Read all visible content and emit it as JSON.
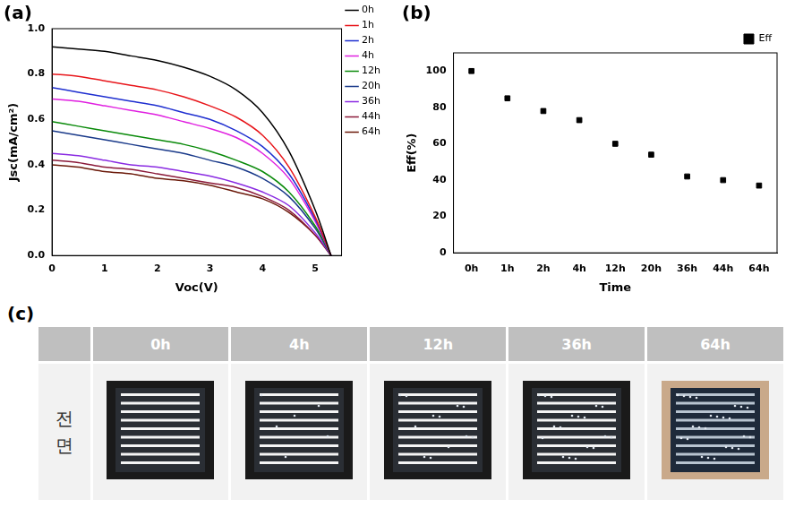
{
  "chart_data": [
    {
      "type": "line",
      "title": "(a)",
      "x_label": "Voc(V)",
      "y_label": "Jsc(mA/cm²)",
      "x": [
        0,
        0.5,
        1,
        1.5,
        2,
        2.5,
        3,
        3.5,
        4,
        4.5,
        5,
        5.3
      ],
      "series": [
        {
          "name": "0h",
          "color": "#000000",
          "values": [
            0.92,
            0.91,
            0.9,
            0.88,
            0.86,
            0.83,
            0.79,
            0.73,
            0.63,
            0.46,
            0.2,
            0
          ]
        },
        {
          "name": "1h",
          "color": "#e8161b",
          "values": [
            0.8,
            0.79,
            0.77,
            0.75,
            0.73,
            0.7,
            0.66,
            0.61,
            0.53,
            0.39,
            0.17,
            0
          ]
        },
        {
          "name": "2h",
          "color": "#1f2fd0",
          "values": [
            0.74,
            0.72,
            0.7,
            0.68,
            0.66,
            0.63,
            0.6,
            0.55,
            0.48,
            0.36,
            0.16,
            0
          ]
        },
        {
          "name": "4h",
          "color": "#e020e0",
          "values": [
            0.69,
            0.68,
            0.66,
            0.64,
            0.62,
            0.59,
            0.56,
            0.52,
            0.45,
            0.34,
            0.15,
            0
          ]
        },
        {
          "name": "12h",
          "color": "#0a8a0a",
          "values": [
            0.59,
            0.57,
            0.55,
            0.53,
            0.51,
            0.49,
            0.46,
            0.42,
            0.37,
            0.28,
            0.13,
            0
          ]
        },
        {
          "name": "20h",
          "color": "#1a3a8a",
          "values": [
            0.55,
            0.53,
            0.51,
            0.49,
            0.47,
            0.45,
            0.42,
            0.39,
            0.34,
            0.26,
            0.12,
            0
          ]
        },
        {
          "name": "36h",
          "color": "#8a2be2",
          "values": [
            0.45,
            0.44,
            0.42,
            0.4,
            0.39,
            0.37,
            0.35,
            0.32,
            0.28,
            0.22,
            0.1,
            0
          ]
        },
        {
          "name": "44h",
          "color": "#8b1a3a",
          "values": [
            0.42,
            0.41,
            0.39,
            0.38,
            0.36,
            0.34,
            0.32,
            0.3,
            0.26,
            0.2,
            0.09,
            0
          ]
        },
        {
          "name": "64h",
          "color": "#6b1a0a",
          "values": [
            0.4,
            0.39,
            0.37,
            0.36,
            0.34,
            0.33,
            0.31,
            0.28,
            0.25,
            0.19,
            0.09,
            0
          ]
        }
      ],
      "xlim": [
        0,
        5.5
      ],
      "xticks": [
        0,
        1,
        2,
        3,
        4,
        5
      ],
      "ylim": [
        0,
        1
      ],
      "yticks": [
        {
          "value": 0,
          "label": "0.0"
        },
        0.2,
        0.4,
        0.6,
        0.8,
        {
          "value": 1,
          "label": "1.0"
        }
      ],
      "line_style": "solid",
      "grid": false,
      "legend": "right"
    },
    {
      "type": "scatter",
      "title": "(b)",
      "x_label": "Time",
      "y_label": "Eff(%)",
      "categories": [
        "0h",
        "1h",
        "2h",
        "4h",
        "12h",
        "20h",
        "36h",
        "44h",
        "64h"
      ],
      "series": [
        {
          "name": "Eff",
          "color": "#000000",
          "marker": "rect",
          "values": [
            100,
            85,
            78,
            73,
            60,
            54,
            42,
            40,
            37
          ]
        }
      ],
      "ylim": [
        0,
        110
      ],
      "yticks": [
        0,
        20,
        40,
        60,
        80,
        100
      ],
      "grid": false,
      "legend": "top right"
    }
  ],
  "photo_table": {
    "title": "(c)",
    "row_label": "전면",
    "columns": [
      "0h",
      "4h",
      "12h",
      "36h",
      "64h"
    ]
  }
}
